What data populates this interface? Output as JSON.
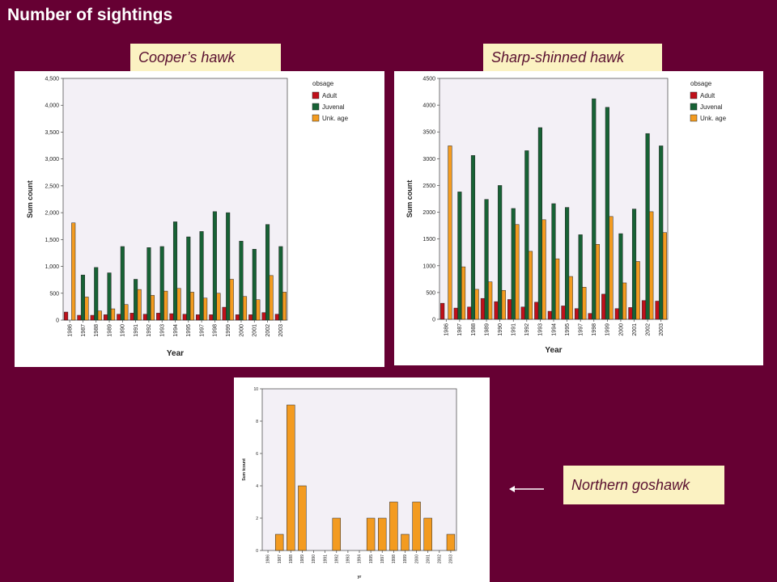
{
  "slide": {
    "title": "Number of sightings"
  },
  "labels": {
    "coopers": "Cooper’s hawk",
    "sharp": "Sharp-shinned hawk",
    "goshawk": "Northern goshawk"
  },
  "colors": {
    "background": "#660033",
    "plot_bg": "#f3f0f6",
    "adult": "#c0101a",
    "juvenal": "#176235",
    "unk_age": "#f39b20",
    "label_box": "#fbf2c2"
  },
  "chart_data": [
    {
      "id": "coopers",
      "type": "bar",
      "xlabel": "Year",
      "ylabel": "Sum count",
      "ylim": [
        0,
        4500
      ],
      "yticks": [
        "0",
        "500",
        "1,000",
        "1,500",
        "2,000",
        "2,500",
        "3,000",
        "3,500",
        "4,000",
        "4,500"
      ],
      "legend": {
        "title": "obsage",
        "position": "top-right"
      },
      "grid": false,
      "categories": [
        "1986",
        "1987",
        "1988",
        "1989",
        "1990",
        "1991",
        "1992",
        "1993",
        "1994",
        "1995",
        "1997",
        "1998",
        "1999",
        "2000",
        "2001",
        "2002",
        "2003"
      ],
      "series": [
        {
          "name": "Adult",
          "values": [
            150,
            90,
            90,
            100,
            110,
            130,
            110,
            130,
            120,
            110,
            100,
            100,
            240,
            100,
            100,
            140,
            110
          ]
        },
        {
          "name": "Juvenal",
          "values": [
            0,
            840,
            980,
            880,
            1370,
            760,
            1350,
            1370,
            1830,
            1550,
            1650,
            2020,
            2000,
            1470,
            1320,
            1780,
            1370
          ]
        },
        {
          "name": "Unk. age",
          "values": [
            1810,
            430,
            170,
            210,
            290,
            570,
            460,
            540,
            590,
            520,
            410,
            500,
            760,
            440,
            380,
            830,
            520
          ]
        }
      ]
    },
    {
      "id": "sharp",
      "type": "bar",
      "xlabel": "Year",
      "ylabel": "Sum count",
      "ylim": [
        0,
        4500
      ],
      "yticks": [
        "0",
        "500",
        "1000",
        "1500",
        "2000",
        "2500",
        "3000",
        "3500",
        "4000",
        "4500"
      ],
      "legend": {
        "title": "obsage",
        "position": "top-right"
      },
      "grid": false,
      "categories": [
        "1986",
        "1987",
        "1988",
        "1989",
        "1990",
        "1991",
        "1992",
        "1993",
        "1994",
        "1995",
        "1997",
        "1998",
        "1999",
        "2000",
        "2001",
        "2002",
        "2003"
      ],
      "series": [
        {
          "name": "Adult",
          "values": [
            300,
            210,
            230,
            390,
            330,
            370,
            230,
            320,
            150,
            250,
            200,
            110,
            470,
            200,
            220,
            350,
            340
          ]
        },
        {
          "name": "Juvenal",
          "values": [
            0,
            2380,
            3060,
            2240,
            2500,
            2070,
            3150,
            3580,
            2160,
            2090,
            1580,
            4120,
            3960,
            1600,
            2060,
            3470,
            3240
          ]
        },
        {
          "name": "Unk. age",
          "values": [
            3240,
            980,
            560,
            700,
            540,
            1770,
            1270,
            1860,
            1130,
            800,
            600,
            1400,
            1920,
            680,
            1080,
            2010,
            1620
          ]
        }
      ]
    },
    {
      "id": "goshawk",
      "type": "bar",
      "xlabel": "yr",
      "ylabel": "Sum tcount",
      "ylim": [
        0,
        10
      ],
      "yticks": [
        "0",
        "2",
        "4",
        "6",
        "8",
        "10"
      ],
      "grid": false,
      "categories": [
        "1986",
        "1987",
        "1988",
        "1989",
        "1990",
        "1991",
        "1992",
        "1993",
        "1994",
        "1995",
        "1997",
        "1998",
        "1999",
        "2000",
        "2001",
        "2002",
        "2003"
      ],
      "values": [
        0,
        1,
        9,
        4,
        0,
        0,
        2,
        0,
        0,
        2,
        2,
        3,
        1,
        3,
        2,
        0,
        1
      ]
    }
  ]
}
